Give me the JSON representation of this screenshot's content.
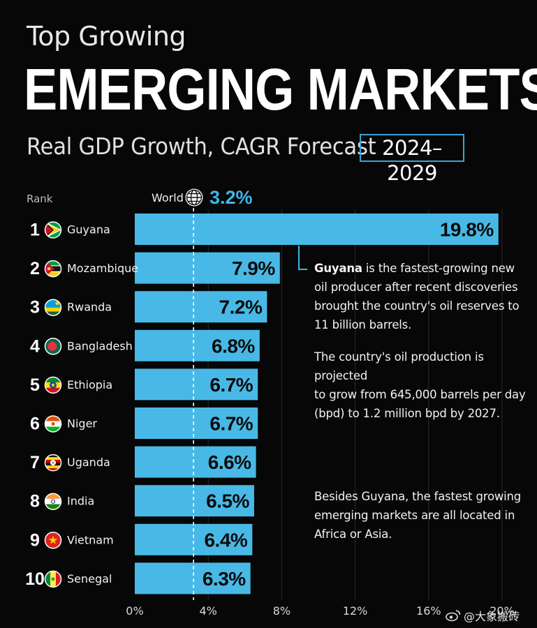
{
  "header": {
    "title_top": "Top Growing",
    "title_main": "EMERGING MARKETS",
    "subtitle": "Real GDP Growth, CAGR Forecast",
    "years": "2024–2029"
  },
  "rank_header": "Rank",
  "world": {
    "label": "World",
    "value": "3.2%",
    "icon": "globe-icon"
  },
  "annotations": {
    "first_bold": "Guyana",
    "first_rest": " is the fastest-growing new\noil producer after recent discoveries\nbrought the country's oil reserves to\n11 billion barrels.",
    "second": "The country's oil production is projected\nto grow from 645,000 barrels per day\n(bpd) to 1.2 million bpd by 2027.",
    "third": "Besides Guyana, the fastest growing\nemerging markets are all located in\nAfrica or Asia."
  },
  "watermark": "@大象搬砖",
  "colors": {
    "bar": "#48b9e6",
    "accent": "#3fb6e8",
    "background": "#070707"
  },
  "chart_data": {
    "type": "bar",
    "orientation": "horizontal",
    "categories": [
      "Guyana",
      "Mozambique",
      "Rwanda",
      "Bangladesh",
      "Ethiopia",
      "Niger",
      "Uganda",
      "India",
      "Vietnam",
      "Senegal"
    ],
    "ranks": [
      "1",
      "2",
      "3",
      "4",
      "5",
      "6",
      "7",
      "8",
      "9",
      "10"
    ],
    "values": [
      19.8,
      7.9,
      7.2,
      6.8,
      6.7,
      6.7,
      6.6,
      6.5,
      6.4,
      6.3
    ],
    "value_labels": [
      "19.8%",
      "7.9%",
      "7.2%",
      "6.8%",
      "6.7%",
      "6.7%",
      "6.6%",
      "6.5%",
      "6.4%",
      "6.3%"
    ],
    "flags": [
      "guyana-flag-icon",
      "mozambique-flag-icon",
      "rwanda-flag-icon",
      "bangladesh-flag-icon",
      "ethiopia-flag-icon",
      "niger-flag-icon",
      "uganda-flag-icon",
      "india-flag-icon",
      "vietnam-flag-icon",
      "senegal-flag-icon"
    ],
    "reference_line": 3.2,
    "xlim": [
      0,
      20
    ],
    "xticks": [
      0,
      4,
      8,
      12,
      16,
      20
    ],
    "xtick_labels": [
      "0%",
      "4%",
      "8%",
      "12%",
      "16%",
      "20%"
    ],
    "grid": true
  }
}
